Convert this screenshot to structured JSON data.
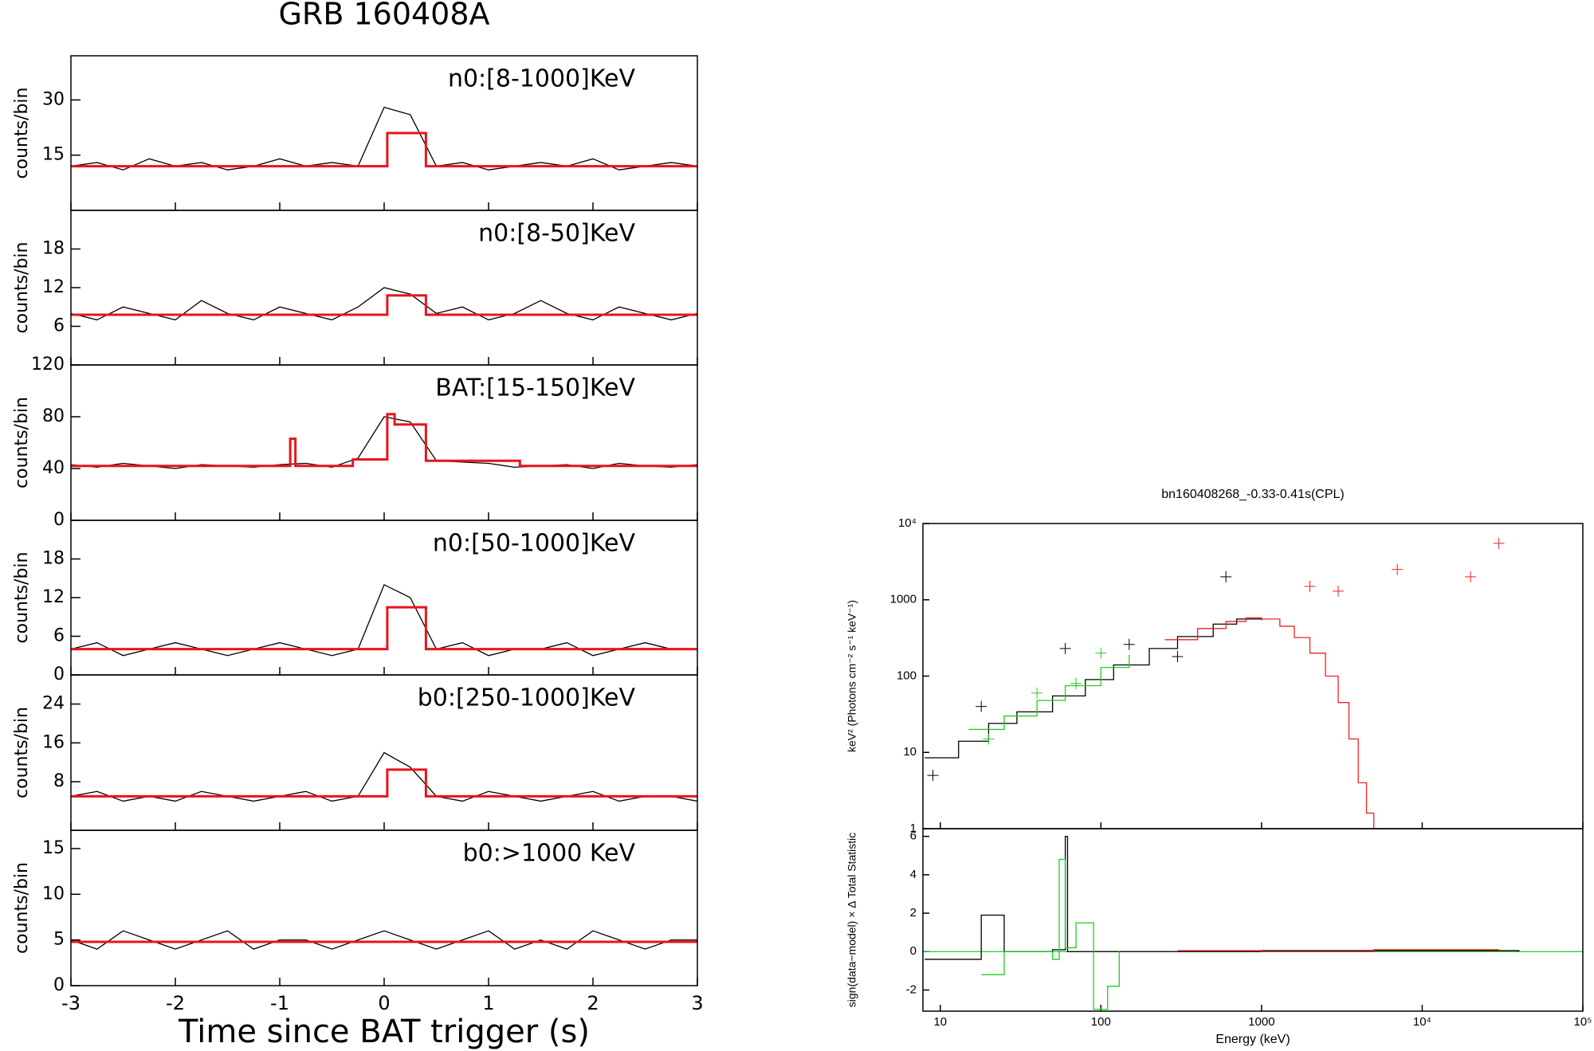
{
  "chart_data": [
    {
      "type": "line",
      "title": "GRB 160408A",
      "label": "n0:[8-1000]KeV",
      "ylabel": "counts/bin",
      "xlim": [
        -3,
        3
      ],
      "xticks": [
        -3,
        -2,
        -1,
        0,
        1,
        2,
        3
      ],
      "ylim": [
        0,
        42
      ],
      "yticks": [
        15,
        30
      ],
      "series": [
        {
          "color": "#000000",
          "x": [
            -3,
            -2.75,
            -2.5,
            -2.25,
            -2,
            -1.75,
            -1.5,
            -1.25,
            -1,
            -0.75,
            -0.5,
            -0.25,
            0,
            0.25,
            0.5,
            0.75,
            1,
            1.25,
            1.5,
            1.75,
            2,
            2.25,
            2.5,
            2.75,
            3
          ],
          "values": [
            12,
            13,
            11,
            14,
            12,
            13,
            11,
            12,
            14,
            12,
            13,
            12,
            28,
            26,
            12,
            13,
            11,
            12,
            13,
            12,
            14,
            11,
            12,
            13,
            12
          ]
        },
        {
          "color": "#e8141b",
          "step": true,
          "x": [
            -3,
            0.03,
            0.4,
            3
          ],
          "values": [
            12,
            21,
            12,
            12
          ]
        }
      ]
    },
    {
      "type": "line",
      "label": "n0:[8-50]KeV",
      "ylabel": "counts/bin",
      "xlim": [
        -3,
        3
      ],
      "xticks": [
        -3,
        -2,
        -1,
        0,
        1,
        2,
        3
      ],
      "ylim": [
        0,
        24
      ],
      "yticks": [
        6,
        12,
        18
      ],
      "series": [
        {
          "color": "#000000",
          "x": [
            -3,
            -2.75,
            -2.5,
            -2.25,
            -2,
            -1.75,
            -1.5,
            -1.25,
            -1,
            -0.75,
            -0.5,
            -0.25,
            0,
            0.25,
            0.5,
            0.75,
            1,
            1.25,
            1.5,
            1.75,
            2,
            2.25,
            2.5,
            2.75,
            3
          ],
          "values": [
            8,
            7,
            9,
            8,
            7,
            10,
            8,
            7,
            9,
            8,
            7,
            9,
            12,
            11,
            8,
            9,
            7,
            8,
            10,
            8,
            7,
            9,
            8,
            7,
            8
          ]
        },
        {
          "color": "#e8141b",
          "step": true,
          "x": [
            -3,
            0.03,
            0.4,
            3
          ],
          "values": [
            7.8,
            10.8,
            7.8,
            7.8
          ]
        }
      ]
    },
    {
      "type": "line",
      "label": "BAT:[15-150]KeV",
      "ylabel": "counts/bin",
      "xlim": [
        -3,
        3
      ],
      "xticks": [
        -3,
        -2,
        -1,
        0,
        1,
        2,
        3
      ],
      "ylim": [
        0,
        120
      ],
      "yticks": [
        0,
        40,
        80,
        120
      ],
      "series": [
        {
          "color": "#000000",
          "x": [
            -3,
            -2.75,
            -2.5,
            -2.25,
            -2,
            -1.75,
            -1.5,
            -1.25,
            -1,
            -0.75,
            -0.5,
            -0.25,
            0,
            0.25,
            0.5,
            0.75,
            1,
            1.25,
            1.5,
            1.75,
            2,
            2.25,
            2.5,
            2.75,
            3
          ],
          "values": [
            43,
            41,
            44,
            42,
            40,
            43,
            42,
            41,
            43,
            44,
            41,
            48,
            80,
            76,
            46,
            45,
            44,
            41,
            42,
            43,
            40,
            44,
            42,
            41,
            43
          ]
        },
        {
          "color": "#e8141b",
          "step": true,
          "x": [
            -3,
            -0.9,
            -0.85,
            -0.3,
            0.03,
            0.1,
            0.4,
            1.3,
            3
          ],
          "values": [
            42,
            63,
            42,
            47,
            82,
            74,
            46,
            42,
            42
          ]
        }
      ]
    },
    {
      "type": "line",
      "label": "n0:[50-1000]KeV",
      "ylabel": "counts/bin",
      "xlim": [
        -3,
        3
      ],
      "xticks": [
        -3,
        -2,
        -1,
        0,
        1,
        2,
        3
      ],
      "ylim": [
        0,
        24
      ],
      "yticks": [
        0,
        6,
        12,
        18
      ],
      "series": [
        {
          "color": "#000000",
          "x": [
            -3,
            -2.75,
            -2.5,
            -2.25,
            -2,
            -1.75,
            -1.5,
            -1.25,
            -1,
            -0.75,
            -0.5,
            -0.25,
            0,
            0.25,
            0.5,
            0.75,
            1,
            1.25,
            1.5,
            1.75,
            2,
            2.25,
            2.5,
            2.75,
            3
          ],
          "values": [
            4,
            5,
            3,
            4,
            5,
            4,
            3,
            4,
            5,
            4,
            3,
            4,
            14,
            12,
            4,
            5,
            3,
            4,
            4,
            5,
            3,
            4,
            5,
            4,
            4
          ]
        },
        {
          "color": "#e8141b",
          "step": true,
          "x": [
            -3,
            0.03,
            0.4,
            3
          ],
          "values": [
            4,
            10.5,
            4,
            4
          ]
        }
      ]
    },
    {
      "type": "line",
      "label": "b0:[250-1000]KeV",
      "ylabel": "counts/bin",
      "xlim": [
        -3,
        3
      ],
      "xticks": [
        -3,
        -2,
        -1,
        0,
        1,
        2,
        3
      ],
      "ylim": [
        -2,
        30
      ],
      "yticks": [
        8,
        16,
        24
      ],
      "series": [
        {
          "color": "#000000",
          "x": [
            -3,
            -2.75,
            -2.5,
            -2.25,
            -2,
            -1.75,
            -1.5,
            -1.25,
            -1,
            -0.75,
            -0.5,
            -0.25,
            0,
            0.25,
            0.5,
            0.75,
            1,
            1.25,
            1.5,
            1.75,
            2,
            2.25,
            2.5,
            2.75,
            3
          ],
          "values": [
            5,
            6,
            4,
            5,
            4,
            6,
            5,
            4,
            5,
            6,
            4,
            5,
            14,
            11,
            5,
            4,
            6,
            5,
            4,
            5,
            6,
            4,
            5,
            5,
            4
          ]
        },
        {
          "color": "#e8141b",
          "step": true,
          "x": [
            -3,
            0.03,
            0.4,
            3
          ],
          "values": [
            5,
            10.5,
            5,
            5
          ]
        }
      ]
    },
    {
      "type": "line",
      "label": "b0:>1000 KeV",
      "ylabel": "counts/bin",
      "xlabel": "Time since BAT trigger (s)",
      "xlim": [
        -3,
        3
      ],
      "xticks": [
        -3,
        -2,
        -1,
        0,
        1,
        2,
        3
      ],
      "ylim": [
        0,
        17
      ],
      "yticks": [
        0,
        5,
        10,
        15
      ],
      "series": [
        {
          "color": "#000000",
          "x": [
            -3,
            -2.75,
            -2.5,
            -2.25,
            -2,
            -1.75,
            -1.5,
            -1.25,
            -1,
            -0.75,
            -0.5,
            -0.25,
            0,
            0.25,
            0.5,
            0.75,
            1,
            1.25,
            1.5,
            1.75,
            2,
            2.25,
            2.5,
            2.75,
            3
          ],
          "values": [
            5,
            4,
            6,
            5,
            4,
            5,
            6,
            4,
            5,
            5,
            4,
            5,
            6,
            5,
            4,
            5,
            6,
            4,
            5,
            4,
            6,
            5,
            4,
            5,
            5
          ]
        },
        {
          "color": "#e8141b",
          "step": true,
          "x": [
            -3,
            3
          ],
          "values": [
            4.8,
            4.8
          ]
        }
      ]
    },
    {
      "type": "line",
      "title": "bn160408268_-0.33-0.41s(CPL)",
      "ylabel": "keV² (Photons cm⁻² s⁻¹ keV⁻¹)",
      "log_x": true,
      "log_y": true,
      "xlim": [
        7.8,
        100000
      ],
      "xticks": [
        10,
        100,
        1000,
        {
          "value": 10000,
          "label": "10⁴"
        },
        {
          "value": 100000,
          "label": "10⁵"
        }
      ],
      "ylim": [
        1,
        10000
      ],
      "yticks": [
        1,
        10,
        100,
        1000,
        {
          "value": 10000,
          "label": "10⁴"
        }
      ],
      "series": [
        {
          "color": "#000000",
          "step": true,
          "x": [
            8,
            13,
            20,
            30,
            50,
            80,
            120,
            200,
            300,
            500,
            700,
            1000
          ],
          "values": [
            8.5,
            14,
            24,
            34,
            55,
            90,
            140,
            230,
            330,
            480,
            560,
            540
          ]
        },
        {
          "color": "#22cc22",
          "step": true,
          "x": [
            15,
            25,
            40,
            60,
            100,
            150
          ],
          "values": [
            20,
            30,
            48,
            75,
            130,
            190
          ]
        },
        {
          "color": "#ee2222",
          "step": true,
          "x": [
            250,
            400,
            600,
            800,
            1000,
            1300,
            1600,
            2000,
            2500,
            3000,
            3500,
            4000,
            4500,
            5000
          ],
          "values": [
            300,
            420,
            520,
            580,
            560,
            450,
            320,
            200,
            100,
            45,
            15,
            4,
            1.6,
            1
          ]
        },
        {
          "color": "#000000",
          "points": true,
          "x": [
            9,
            18,
            60,
            150,
            300,
            600
          ],
          "values": [
            5,
            40,
            230,
            260,
            180,
            2000
          ]
        },
        {
          "color": "#22cc22",
          "points": true,
          "x": [
            20,
            40,
            70,
            100
          ],
          "values": [
            15,
            60,
            80,
            200
          ]
        },
        {
          "color": "#ee2222",
          "points": true,
          "x": [
            2000,
            3000,
            7000,
            20000,
            30000
          ],
          "values": [
            1500,
            1300,
            2500,
            2000,
            5500
          ]
        }
      ]
    },
    {
      "type": "line",
      "ylabel": "sign(data−model) × Δ Total Statistic",
      "xlabel": "Energy (keV)",
      "log_x": true,
      "xlim": [
        7.8,
        100000
      ],
      "xticks": [
        10,
        100,
        1000,
        {
          "value": 10000,
          "label": "10⁴"
        },
        {
          "value": 100000,
          "label": "10⁵"
        }
      ],
      "ylim": [
        -3.1,
        6.4
      ],
      "yticks": [
        -2,
        0,
        2,
        4,
        6
      ],
      "series": [
        {
          "color": "#22cc22",
          "x": [
            7.8,
            100000
          ],
          "values": [
            0,
            0
          ]
        },
        {
          "color": "#000000",
          "step": true,
          "x": [
            8,
            18,
            25,
            50,
            60,
            62,
            100,
            1000,
            40000
          ],
          "values": [
            -0.4,
            1.9,
            0,
            0.1,
            6,
            0,
            0,
            0.05,
            0
          ]
        },
        {
          "color": "#22cc22",
          "step": true,
          "x": [
            18,
            25,
            50,
            55,
            60,
            70,
            90,
            110,
            130
          ],
          "values": [
            -1.2,
            0,
            -0.4,
            4.8,
            0.2,
            1.5,
            -3,
            -1.8,
            0
          ]
        },
        {
          "color": "#ee2222",
          "step": true,
          "x": [
            300,
            1000,
            5000,
            30000
          ],
          "values": [
            0.05,
            0,
            0.1,
            0.05
          ]
        }
      ]
    }
  ]
}
